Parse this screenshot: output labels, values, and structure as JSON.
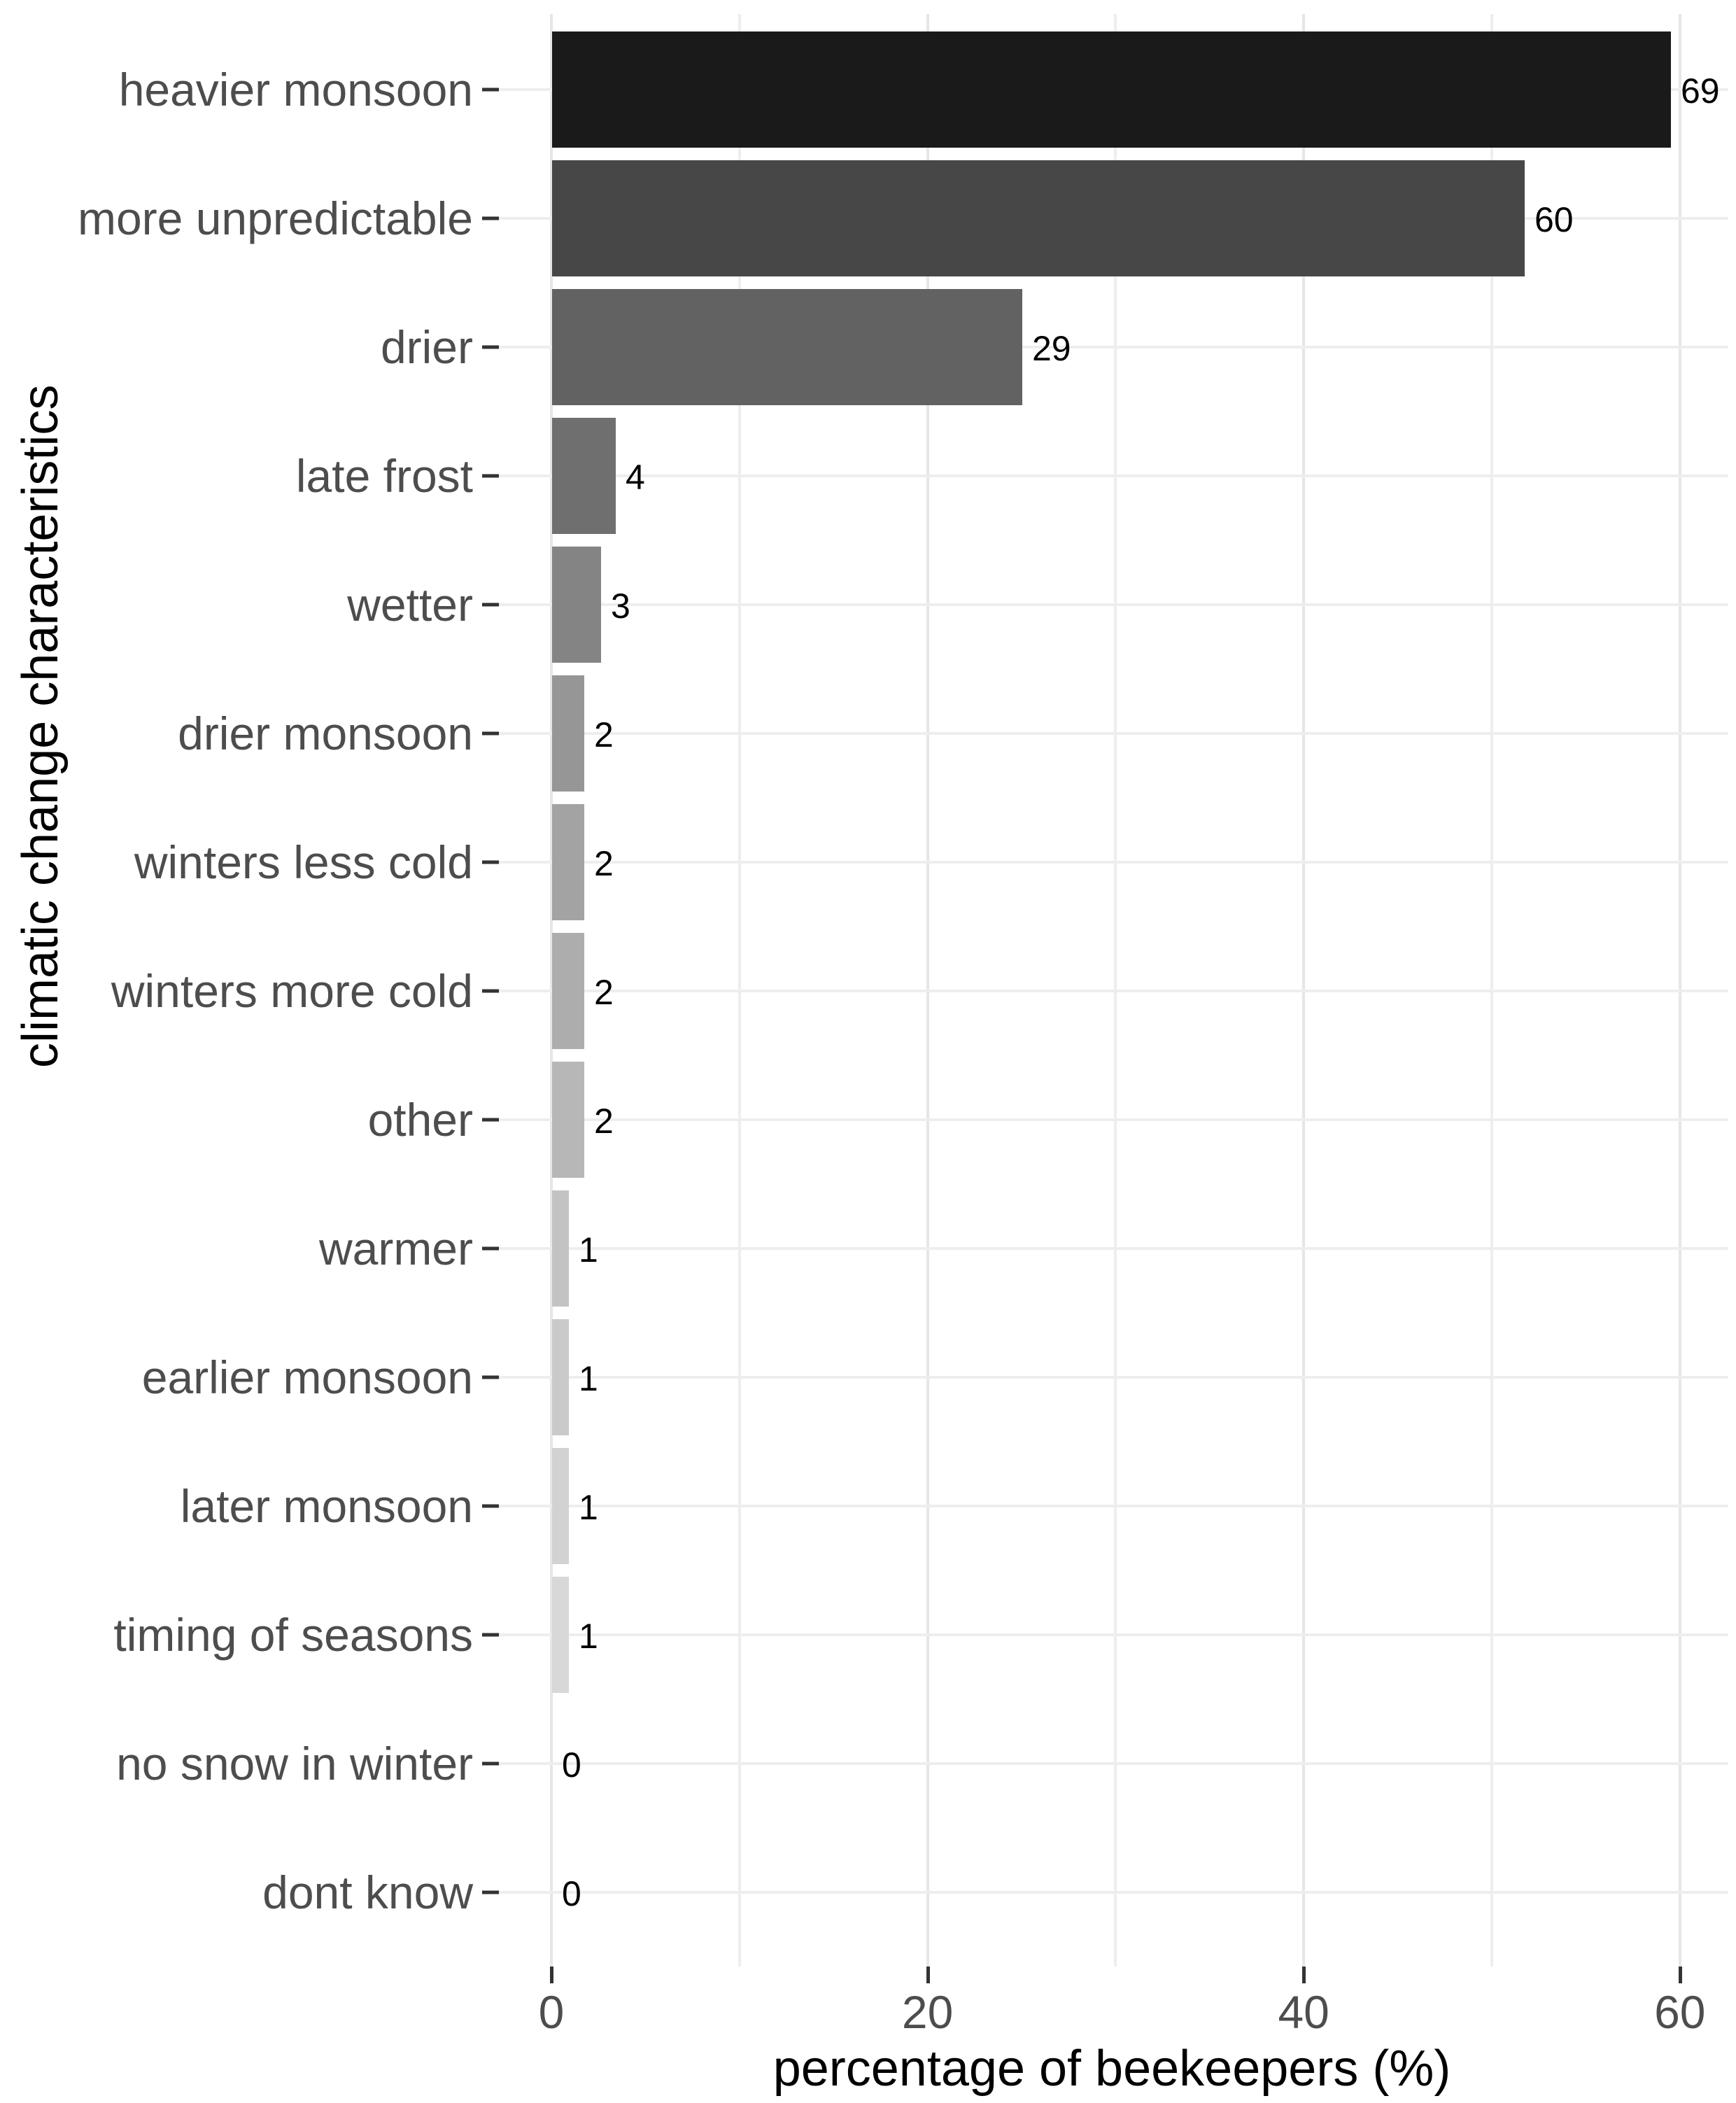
{
  "chart_data": {
    "type": "bar",
    "orientation": "horizontal",
    "xlabel": "percentage of beekeepers (%)",
    "ylabel": "climatic change characteristics",
    "categories": [
      "heavier monsoon",
      "more unpredictable",
      "drier",
      "late frost",
      "wetter",
      "drier monsoon",
      "winters less cold",
      "winters more cold",
      "other",
      "warmer",
      "earlier monsoon",
      "later monsoon",
      "timing of seasons",
      "no snow in winter",
      "dont know"
    ],
    "counts": [
      69,
      60,
      29,
      4,
      3,
      2,
      2,
      2,
      2,
      1,
      1,
      1,
      1,
      0,
      0
    ],
    "value_labels": [
      "69",
      "60",
      "29",
      "4",
      "3",
      "2",
      "2",
      "2",
      "2",
      "1",
      "1",
      "1",
      "1",
      "0",
      "0"
    ],
    "percent_values": [
      59.5,
      51.7,
      25.0,
      3.4,
      2.6,
      1.7,
      1.7,
      1.7,
      1.7,
      0.9,
      0.9,
      0.9,
      0.9,
      0,
      0
    ],
    "bar_colors": [
      "#1a1a1a",
      "#474747",
      "#626262",
      "#6f6f6f",
      "#848484",
      "#969696",
      "#a3a3a3",
      "#adadad",
      "#b7b7b7",
      "#c3c3c3",
      "#cacaca",
      "#d2d2d2",
      "#d8d8d8",
      "#e1e1e1",
      "#eaeaea"
    ],
    "x_axis": {
      "major_ticks": [
        0,
        20,
        40,
        60
      ],
      "major_tick_labels": [
        "0",
        "20",
        "40",
        "60"
      ],
      "minor_ticks": [
        10,
        30,
        50
      ],
      "range_shown": [
        0,
        63
      ]
    },
    "grid": true,
    "legend": false,
    "styles": {
      "background": "#ffffff",
      "grid_major": "#e6e6e6",
      "grid_minor": "#eeeeee",
      "axis_text": "#4d4d4d",
      "tick_mark": "#333333",
      "value_text": "#000000"
    }
  }
}
